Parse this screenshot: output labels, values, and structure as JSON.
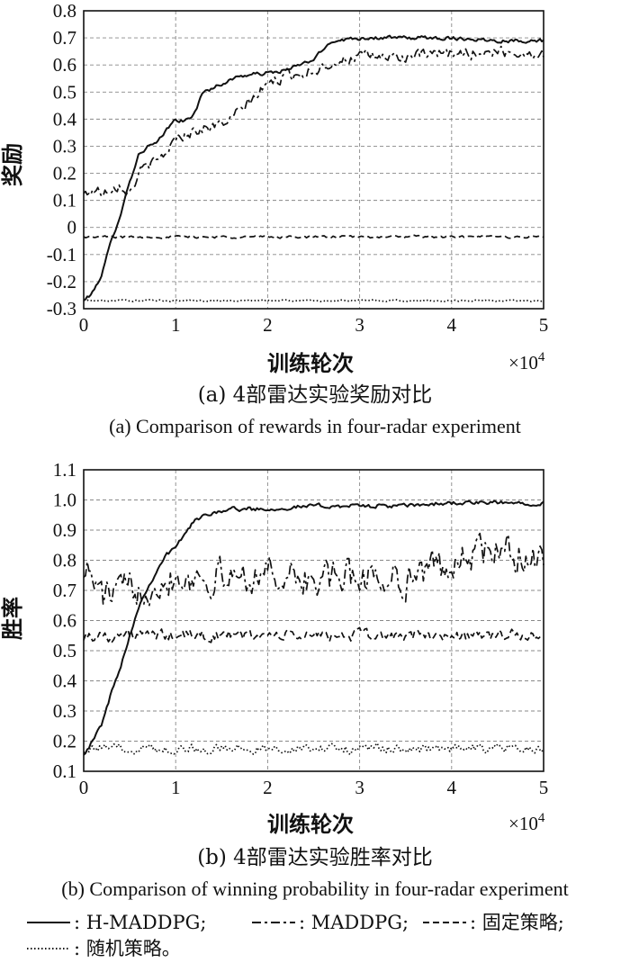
{
  "chart_data": [
    {
      "type": "line",
      "ylabel": "奖励",
      "xlabel": "训练轮次",
      "x_multiplier": "×10",
      "x_multiplier_exp": "4",
      "xlim": [
        0,
        5
      ],
      "ylim": [
        -0.3,
        0.8
      ],
      "xticks": [
        "0",
        "1",
        "2",
        "3",
        "4",
        "5"
      ],
      "yticks": [
        "0.8",
        "0.7",
        "0.6",
        "0.5",
        "0.4",
        "0.3",
        "0.2",
        "0.1",
        "0",
        "-0.1",
        "-0.2",
        "-0.3"
      ],
      "grid": true,
      "caption_zh": "(a) 4部雷达实验奖励对比",
      "caption_en": "(a) Comparison of rewards in four-radar experiment",
      "series": [
        {
          "name": "H-MADDPG",
          "style": "solid",
          "noise": 0.006,
          "x": [
            0,
            0.1,
            0.2,
            0.3,
            0.4,
            0.5,
            0.6,
            0.7,
            0.8,
            0.9,
            1.0,
            1.1,
            1.2,
            1.3,
            1.5,
            1.7,
            2.0,
            2.2,
            2.5,
            2.7,
            3.0,
            3.5,
            4.0,
            4.5,
            5.0
          ],
          "y": [
            -0.27,
            -0.24,
            -0.17,
            -0.05,
            0.05,
            0.17,
            0.27,
            0.3,
            0.31,
            0.36,
            0.4,
            0.39,
            0.42,
            0.5,
            0.53,
            0.56,
            0.57,
            0.58,
            0.62,
            0.69,
            0.7,
            0.7,
            0.7,
            0.69,
            0.69
          ]
        },
        {
          "name": "MADDPG",
          "style": "dashdot",
          "noise": 0.018,
          "x": [
            0,
            0.1,
            0.2,
            0.3,
            0.4,
            0.5,
            0.6,
            0.7,
            0.8,
            0.9,
            1.0,
            1.2,
            1.4,
            1.6,
            1.8,
            2.0,
            2.2,
            2.5,
            2.7,
            3.0,
            3.5,
            4.0,
            4.5,
            5.0
          ],
          "y": [
            0.12,
            0.14,
            0.13,
            0.15,
            0.16,
            0.13,
            0.2,
            0.23,
            0.24,
            0.28,
            0.33,
            0.36,
            0.37,
            0.4,
            0.46,
            0.53,
            0.56,
            0.58,
            0.61,
            0.63,
            0.63,
            0.64,
            0.65,
            0.64
          ]
        },
        {
          "name": "固定策略",
          "style": "dashed",
          "noise": 0.004,
          "x": [
            0,
            5
          ],
          "y": [
            -0.035,
            -0.035
          ]
        },
        {
          "name": "随机策略",
          "style": "dotted",
          "noise": 0.003,
          "x": [
            0,
            5
          ],
          "y": [
            -0.27,
            -0.27
          ]
        }
      ]
    },
    {
      "type": "line",
      "ylabel": "胜率",
      "xlabel": "训练轮次",
      "x_multiplier": "×10",
      "x_multiplier_exp": "4",
      "xlim": [
        0,
        5
      ],
      "ylim": [
        0.1,
        1.1
      ],
      "xticks": [
        "0",
        "1",
        "2",
        "3",
        "4",
        "5"
      ],
      "yticks": [
        "1.1",
        "1.0",
        "0.9",
        "0.8",
        "0.7",
        "0.6",
        "0.5",
        "0.4",
        "0.3",
        "0.2",
        "0.1"
      ],
      "grid": true,
      "caption_zh": "(b) 4部雷达实验胜率对比",
      "caption_en": "(b) Comparison of winning probability in four-radar experiment",
      "series": [
        {
          "name": "H-MADDPG",
          "style": "solid",
          "noise": 0.006,
          "x": [
            0,
            0.1,
            0.2,
            0.3,
            0.4,
            0.5,
            0.6,
            0.7,
            0.8,
            0.9,
            1.0,
            1.1,
            1.2,
            1.4,
            1.6,
            2.0,
            2.5,
            3.0,
            3.5,
            4.0,
            4.5,
            5.0
          ],
          "y": [
            0.16,
            0.2,
            0.26,
            0.36,
            0.45,
            0.55,
            0.65,
            0.71,
            0.77,
            0.82,
            0.84,
            0.89,
            0.93,
            0.96,
            0.97,
            0.97,
            0.98,
            0.98,
            0.98,
            0.99,
            0.99,
            0.99
          ]
        },
        {
          "name": "MADDPG",
          "style": "dashdot",
          "noise": 0.05,
          "x": [
            0,
            0.2,
            0.5,
            1.0,
            1.5,
            2.0,
            2.5,
            3.0,
            3.5,
            4.0,
            4.3,
            4.6,
            5.0
          ],
          "y": [
            0.79,
            0.68,
            0.7,
            0.75,
            0.74,
            0.76,
            0.73,
            0.75,
            0.74,
            0.79,
            0.83,
            0.82,
            0.81
          ]
        },
        {
          "name": "固定策略",
          "style": "dashed",
          "noise": 0.017,
          "x": [
            0,
            5
          ],
          "y": [
            0.55,
            0.55
          ]
        },
        {
          "name": "随机策略",
          "style": "dotted",
          "noise": 0.013,
          "x": [
            0,
            5
          ],
          "y": [
            0.175,
            0.175
          ]
        }
      ]
    }
  ],
  "legend": {
    "items": [
      {
        "style": "solid",
        "text": ": H-MADDPG;"
      },
      {
        "style": "dashdot",
        "text": ": MADDPG;"
      },
      {
        "style": "dashed",
        "text": ": 固定策略;"
      },
      {
        "style": "dotted",
        "text": ": 随机策略。"
      }
    ]
  }
}
